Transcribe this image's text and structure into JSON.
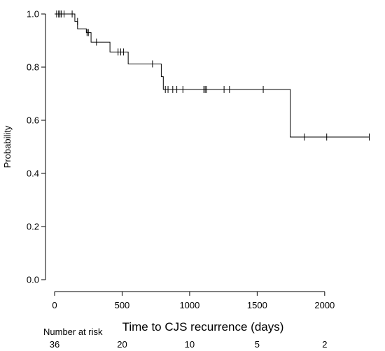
{
  "chart_data": {
    "type": "line",
    "subtype": "kaplan-meier",
    "title": "",
    "xlabel": "Time to CJS recurrence (days)",
    "ylabel": "Probability",
    "xlim": [
      0,
      2400
    ],
    "ylim": [
      0,
      1.0
    ],
    "x_ticks": [
      0,
      500,
      1000,
      1500,
      2000
    ],
    "y_ticks": [
      0.0,
      0.2,
      0.4,
      0.6,
      0.8,
      1.0
    ],
    "x_tick_labels": [
      "0",
      "500",
      "1000",
      "1500",
      "2000"
    ],
    "y_tick_labels": [
      "0.0",
      "0.2",
      "0.4",
      "0.6",
      "0.8",
      "1.0"
    ],
    "grid": false,
    "legend": "none",
    "colors": {
      "line": "#000000",
      "axis": "#000000"
    },
    "series": [
      {
        "step_x": [
          0,
          150,
          170,
          200,
          235,
          270,
          410,
          545,
          790,
          805,
          1745,
          2330
        ],
        "step_y": [
          1.0,
          0.972,
          0.944,
          0.944,
          0.93,
          0.894,
          0.857,
          0.812,
          0.764,
          0.716,
          0.537,
          0.537
        ],
        "censored_x": [
          15,
          30,
          40,
          50,
          70,
          130,
          170,
          240,
          250,
          310,
          470,
          490,
          510,
          725,
          820,
          840,
          875,
          905,
          950,
          1105,
          1115,
          1125,
          1255,
          1295,
          1545,
          1850,
          2015,
          2330
        ],
        "censored_y": [
          1.0,
          1.0,
          1.0,
          1.0,
          1.0,
          1.0,
          0.972,
          0.93,
          0.93,
          0.894,
          0.857,
          0.857,
          0.857,
          0.812,
          0.716,
          0.716,
          0.716,
          0.716,
          0.716,
          0.716,
          0.716,
          0.716,
          0.716,
          0.716,
          0.716,
          0.537,
          0.537,
          0.537
        ]
      }
    ],
    "risk_table": {
      "label": "Number at risk",
      "x": [
        0,
        500,
        1000,
        1500,
        2000
      ],
      "values": [
        "36",
        "20",
        "10",
        "5",
        "2"
      ]
    }
  }
}
